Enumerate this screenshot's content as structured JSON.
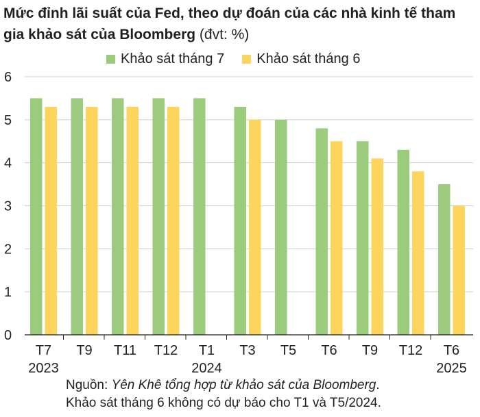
{
  "header": {
    "title": "Mức đỉnh lãi suất của Fed, theo dự đoán của các nhà kinh tế tham gia khảo sát của Bloomberg",
    "unit": " (đvt: %)"
  },
  "chart_data": {
    "type": "bar",
    "categories": [
      "T7",
      "T9",
      "T11",
      "T12",
      "T1",
      "T3",
      "T5",
      "T6",
      "T9",
      "T12",
      "T6"
    ],
    "category_years": [
      "2023",
      "",
      "",
      "",
      "2024",
      "",
      "",
      "",
      "",
      "",
      "2025"
    ],
    "series": [
      {
        "name": "Khảo sát tháng 7",
        "color": "#9bcb7c",
        "values": [
          5.5,
          5.5,
          5.5,
          5.5,
          5.5,
          5.3,
          5.0,
          4.8,
          4.5,
          4.3,
          3.5
        ]
      },
      {
        "name": "Khảo sát tháng 6",
        "color": "#fdd55c",
        "values": [
          5.3,
          5.3,
          5.3,
          5.3,
          null,
          5.0,
          null,
          4.5,
          4.1,
          3.8,
          3.0
        ]
      }
    ],
    "y_ticks": [
      0,
      1,
      2,
      3,
      4,
      5,
      6
    ],
    "ylim": [
      0,
      6
    ],
    "grid": true,
    "legend_position": "top"
  },
  "source": {
    "prefix": "Nguồn: ",
    "credit": "Yên Khê tổng hợp từ khảo sát của Bloomberg",
    "suffix": ".",
    "note": "Khảo sát tháng 6 không có dự báo cho T1 và T5/2024."
  }
}
